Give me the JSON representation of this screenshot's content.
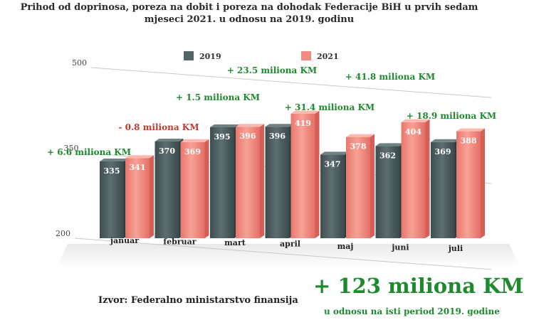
{
  "chart_data": {
    "type": "bar",
    "title_lines": [
      "Prihod od doprinosa, poreza na dobit i poreza na dohodak Federacije BiH u prvih sedam",
      "mjeseci 2021. u odnosu na 2019. godinu"
    ],
    "categories": [
      "januar",
      "februar",
      "mart",
      "april",
      "maj",
      "juni",
      "juli"
    ],
    "series": [
      {
        "name": "2019",
        "values": [
          335,
          370,
          395,
          396,
          347,
          362,
          369
        ]
      },
      {
        "name": "2021",
        "values": [
          341,
          369,
          396,
          419,
          378,
          404,
          388
        ]
      }
    ],
    "y_ticks": [
      "200",
      "350",
      "500"
    ],
    "ylim": [
      200,
      500
    ],
    "differences": [
      "+ 6.6 miliona KM",
      "- 0.8 miliona KM",
      "+ 1.5 miliona KM",
      "+ 23.5 miliona KM",
      "+ 31.4 miliona KM",
      "+ 41.8 miliona KM",
      "+ 18.9 miliona KM"
    ],
    "legend_position": "top",
    "colors": {
      "series_2019": "#546567",
      "series_2021": "#f28a80",
      "positive_difference": "#1e8a2e",
      "negative_difference": "#c0392b"
    }
  },
  "source": "Izvor: Federalno ministarstvo finansija",
  "total": "+ 123 miliona KM",
  "total_note": "u odnosu na isti period 2019. godine"
}
